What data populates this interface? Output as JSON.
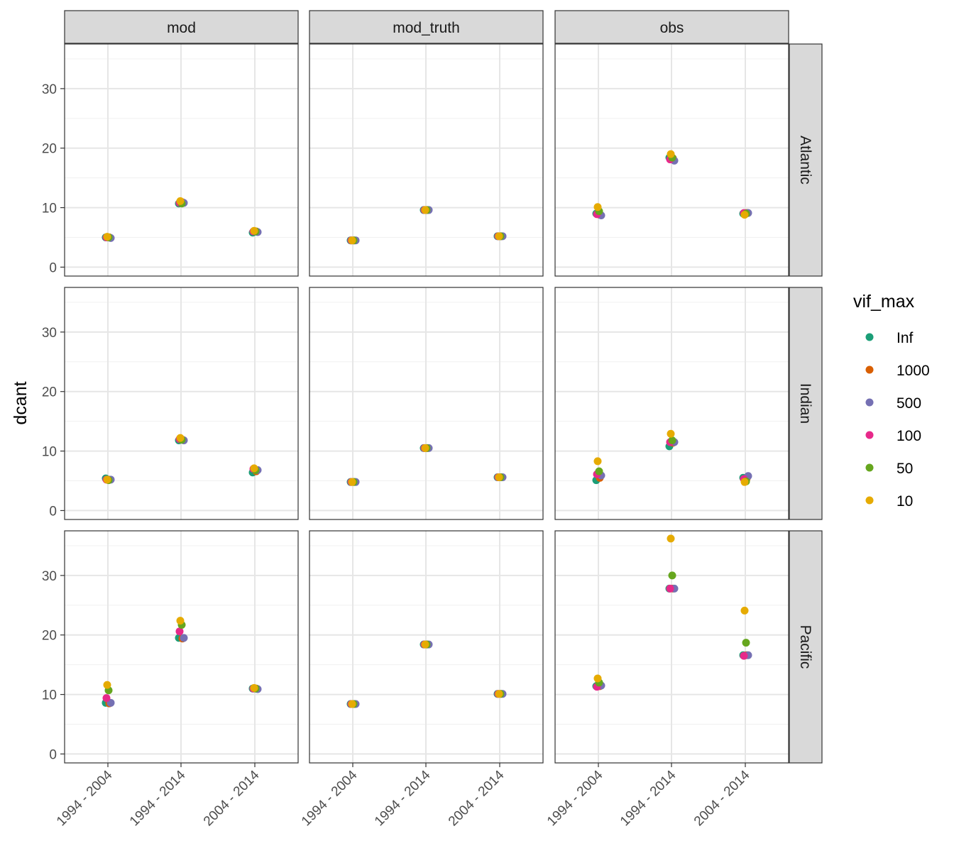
{
  "chart_data": {
    "type": "scatter",
    "facet_columns": [
      "mod",
      "mod_truth",
      "obs"
    ],
    "facet_rows": [
      "Atlantic",
      "Indian",
      "Pacific"
    ],
    "categories": [
      "1994 - 2004",
      "1994 - 2014",
      "2004 - 2014"
    ],
    "ylabel": "dcant",
    "xlabel": "",
    "ylim": [
      -1.5,
      37.5
    ],
    "yticks": [
      0,
      10,
      20,
      30
    ],
    "grid": true,
    "legend": {
      "title": "vif_max",
      "position": "right",
      "entries": [
        {
          "label": "Inf",
          "color": "#1B9E77"
        },
        {
          "label": "1000",
          "color": "#D95F02"
        },
        {
          "label": "500",
          "color": "#7570B3"
        },
        {
          "label": "100",
          "color": "#E7298A"
        },
        {
          "label": "50",
          "color": "#66A61E"
        },
        {
          "label": "10",
          "color": "#E6AB02"
        }
      ]
    },
    "series_names": [
      "Inf",
      "1000",
      "500",
      "100",
      "50",
      "10"
    ],
    "panels": [
      {
        "row": "Atlantic",
        "col": "mod",
        "values": {
          "Inf": [
            5.0,
            10.7,
            5.8
          ],
          "1000": [
            5.0,
            10.9,
            6.0
          ],
          "500": [
            4.9,
            10.8,
            5.9
          ],
          "100": [
            5.0,
            10.8,
            6.0
          ],
          "50": [
            5.0,
            10.7,
            6.0
          ],
          "10": [
            5.1,
            11.1,
            6.1
          ]
        }
      },
      {
        "row": "Atlantic",
        "col": "mod_truth",
        "values": {
          "Inf": [
            4.5,
            9.6,
            5.2
          ],
          "1000": [
            4.5,
            9.6,
            5.2
          ],
          "500": [
            4.5,
            9.6,
            5.2
          ],
          "100": [
            4.5,
            9.6,
            5.2
          ],
          "50": [
            4.5,
            9.6,
            5.2
          ],
          "10": [
            4.5,
            9.6,
            5.2
          ]
        }
      },
      {
        "row": "Atlantic",
        "col": "obs",
        "values": {
          "Inf": [
            9.0,
            18.4,
            9.0
          ],
          "1000": [
            8.8,
            18.3,
            9.1
          ],
          "500": [
            8.7,
            17.9,
            9.1
          ],
          "100": [
            8.9,
            18.1,
            9.1
          ],
          "50": [
            9.4,
            18.4,
            9.0
          ],
          "10": [
            10.1,
            19.0,
            8.8
          ]
        }
      },
      {
        "row": "Indian",
        "col": "mod",
        "values": {
          "Inf": [
            5.4,
            11.8,
            6.4
          ],
          "1000": [
            5.2,
            11.9,
            6.6
          ],
          "500": [
            5.2,
            11.8,
            6.8
          ],
          "100": [
            5.2,
            12.0,
            7.0
          ],
          "50": [
            5.1,
            11.9,
            6.8
          ],
          "10": [
            5.2,
            12.2,
            7.1
          ]
        }
      },
      {
        "row": "Indian",
        "col": "mod_truth",
        "values": {
          "Inf": [
            4.8,
            10.5,
            5.6
          ],
          "1000": [
            4.8,
            10.5,
            5.6
          ],
          "500": [
            4.8,
            10.5,
            5.6
          ],
          "100": [
            4.8,
            10.5,
            5.6
          ],
          "50": [
            4.8,
            10.5,
            5.6
          ],
          "10": [
            4.8,
            10.5,
            5.6
          ]
        }
      },
      {
        "row": "Indian",
        "col": "obs",
        "values": {
          "Inf": [
            5.1,
            10.8,
            5.5
          ],
          "1000": [
            5.5,
            11.4,
            5.4
          ],
          "500": [
            5.9,
            11.5,
            5.8
          ],
          "100": [
            6.1,
            11.5,
            5.3
          ],
          "50": [
            6.6,
            11.8,
            4.9
          ],
          "10": [
            8.3,
            12.9,
            4.8
          ]
        }
      },
      {
        "row": "Pacific",
        "col": "mod",
        "values": {
          "Inf": [
            8.6,
            19.5,
            11.0
          ],
          "1000": [
            8.5,
            19.4,
            11.0
          ],
          "500": [
            8.6,
            19.5,
            10.9
          ],
          "100": [
            9.4,
            20.6,
            11.0
          ],
          "50": [
            10.7,
            21.7,
            11.0
          ],
          "10": [
            11.6,
            22.4,
            11.1
          ]
        }
      },
      {
        "row": "Pacific",
        "col": "mod_truth",
        "values": {
          "Inf": [
            8.4,
            18.4,
            10.1
          ],
          "1000": [
            8.4,
            18.4,
            10.1
          ],
          "500": [
            8.4,
            18.4,
            10.1
          ],
          "100": [
            8.4,
            18.4,
            10.1
          ],
          "50": [
            8.4,
            18.4,
            10.1
          ],
          "10": [
            8.4,
            18.4,
            10.1
          ]
        }
      },
      {
        "row": "Pacific",
        "col": "obs",
        "values": {
          "Inf": [
            11.4,
            27.8,
            16.6
          ],
          "1000": [
            11.4,
            27.8,
            16.6
          ],
          "500": [
            11.5,
            27.8,
            16.6
          ],
          "100": [
            11.3,
            27.8,
            16.5
          ],
          "50": [
            12.0,
            30.0,
            18.7
          ],
          "10": [
            12.7,
            36.2,
            24.1
          ]
        }
      }
    ]
  }
}
